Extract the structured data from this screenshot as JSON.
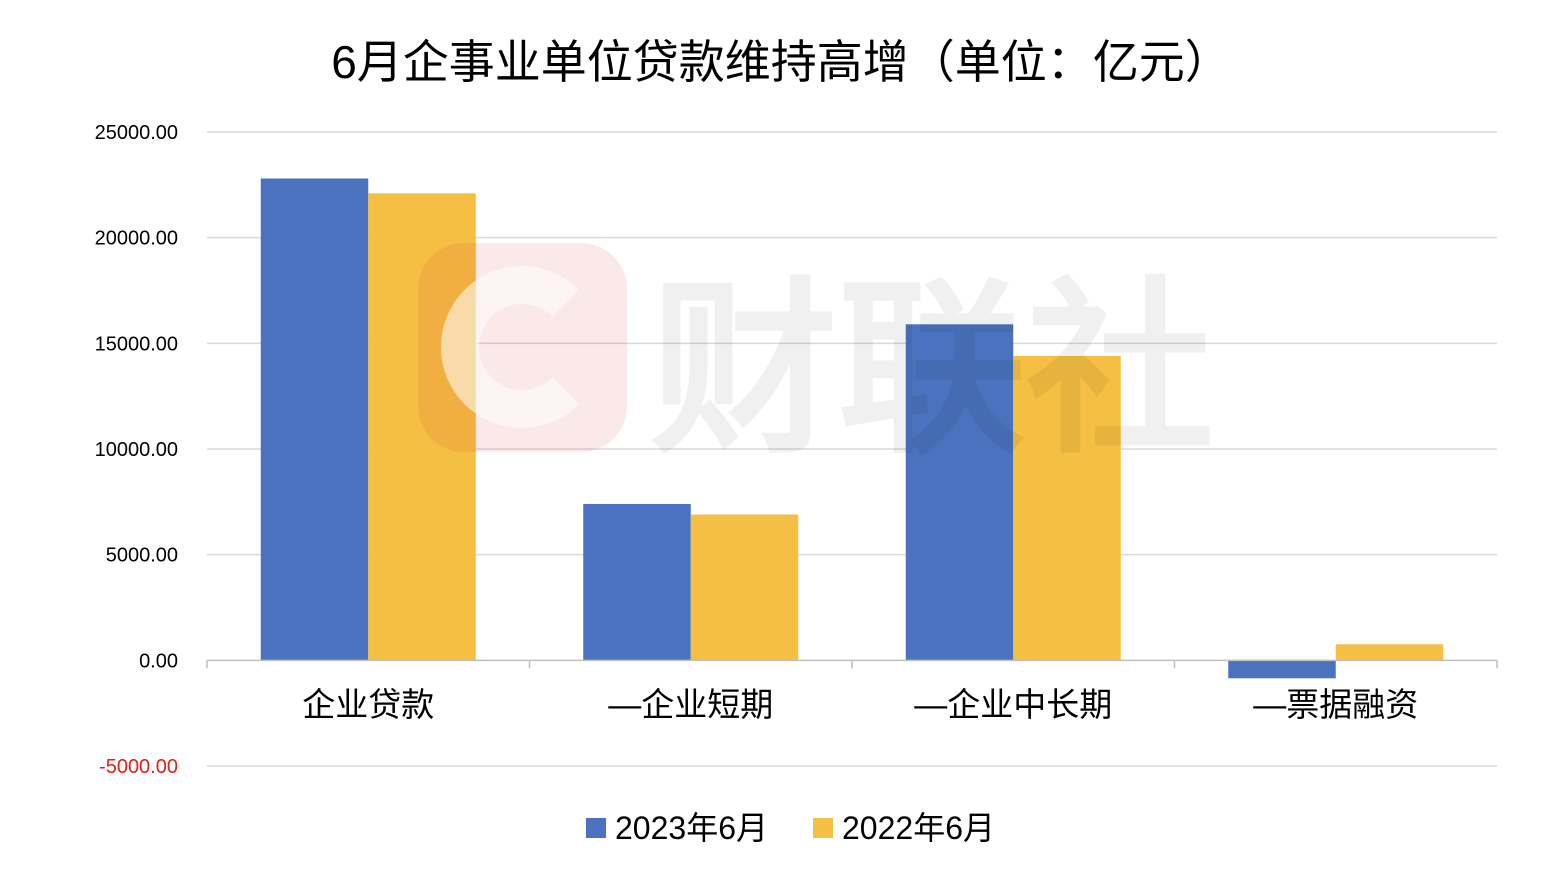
{
  "chart_data": {
    "type": "bar",
    "title": "6月企事业单位贷款维持高增（单位：亿元）",
    "categories": [
      "企业贷款",
      "—企业短期",
      "—企业中长期",
      "—票据融资"
    ],
    "series": [
      {
        "name": "2023年6月",
        "color": "#4A72BE",
        "values": [
          22800,
          7400,
          15900,
          -850
        ]
      },
      {
        "name": "2022年6月",
        "color": "#F4BF42",
        "values": [
          22100,
          6900,
          14400,
          760
        ]
      }
    ],
    "y_ticks": [
      25000,
      20000,
      15000,
      10000,
      5000,
      0,
      -5000
    ],
    "y_tick_labels": [
      "25000.00",
      "20000.00",
      "15000.00",
      "10000.00",
      "5000.00",
      "0.00",
      "-5000.00"
    ],
    "ylim": [
      -5000,
      25000
    ],
    "xlabel": "",
    "ylabel": "",
    "grid": true,
    "legend": "bottom",
    "gridline_color": "#D9D9D9",
    "negative_tick_color": "#E0201B"
  },
  "watermark": {
    "text": "财联社",
    "icon": "c-logo-icon",
    "icon_color": "#E04040"
  }
}
